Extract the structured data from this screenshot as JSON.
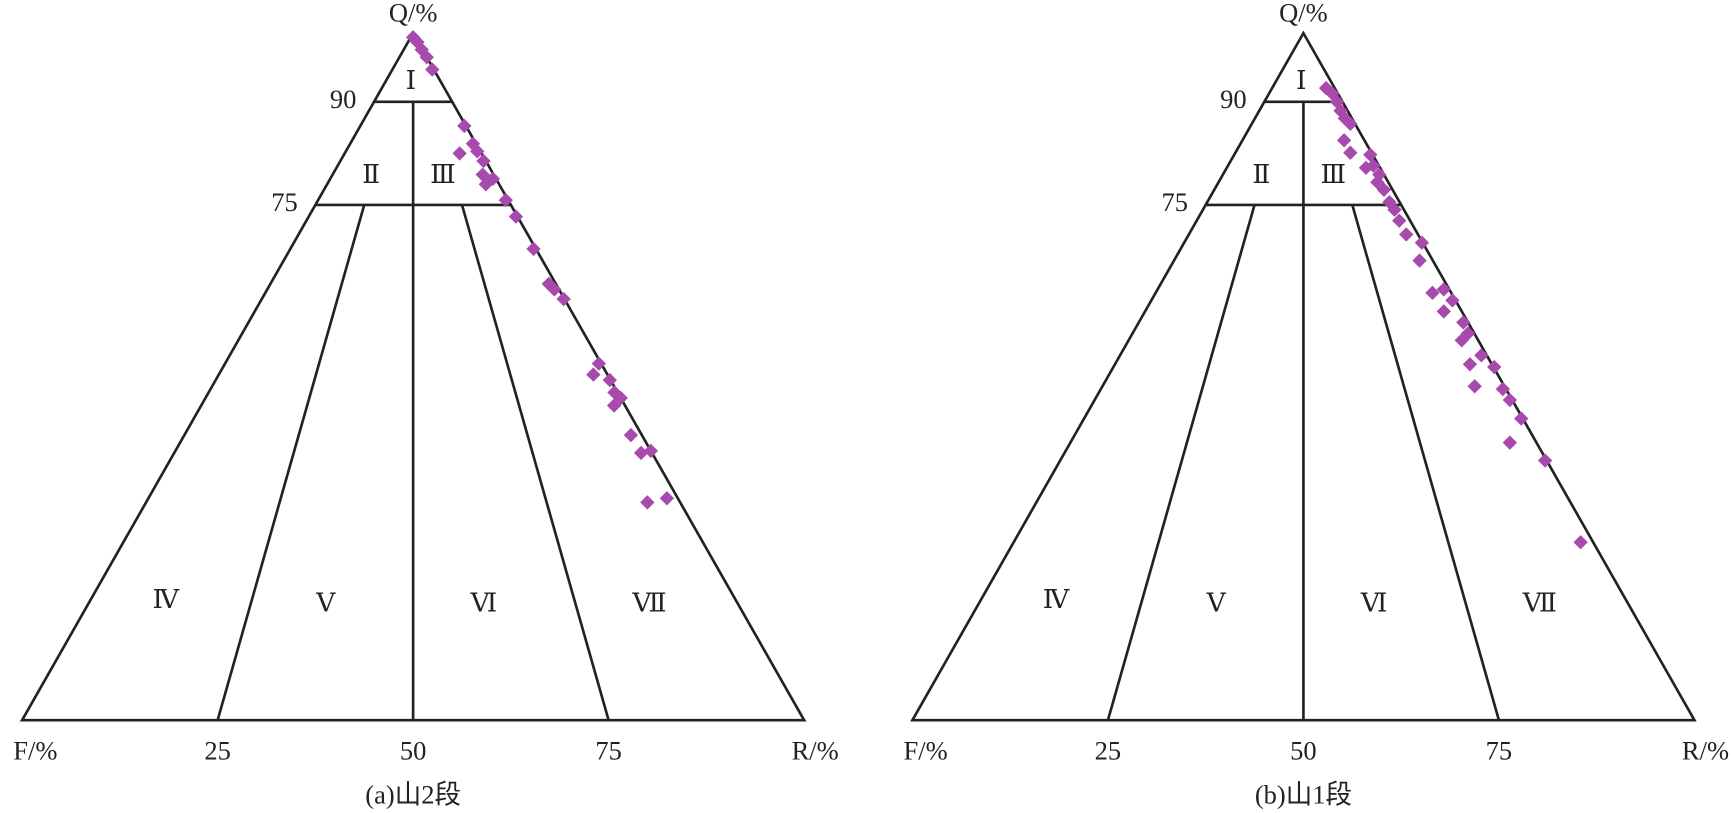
{
  "chart_data": [
    {
      "type": "ternary",
      "caption": "(a)山2段",
      "axis_labels": {
        "top": "Q/%",
        "left": "F/%",
        "right": "R/%"
      },
      "qticks": [
        90,
        75
      ],
      "bticks": [
        25,
        50,
        75
      ],
      "field_labels": [
        "Ⅰ",
        "Ⅱ",
        "Ⅲ",
        "Ⅳ",
        "Ⅴ",
        "Ⅵ",
        "Ⅶ"
      ],
      "color": "#a84aad",
      "points": {
        "q": [
          99.4,
          98.7,
          97.6,
          96.5,
          94.7,
          86.5,
          83.9,
          82.8,
          82.5,
          81.4,
          79.4,
          78.8,
          78.0,
          75.7,
          73.3,
          68.6,
          63.5,
          62.7,
          61.3,
          51.9,
          50.3,
          49.5,
          47.7,
          46.9,
          45.8,
          41.5,
          39.2,
          38.9,
          32.3,
          31.7
        ],
        "r": [
          0.3,
          1.2,
          2.3,
          3.5,
          5.1,
          13.3,
          15.7,
          16.8,
          14.7,
          18.3,
          19.2,
          20.8,
          20.3,
          24.0,
          26.5,
          31.1,
          35.6,
          36.7,
          38.6,
          47.8,
          47.9,
          50.4,
          51.9,
          53.1,
          52.8,
          57.1,
          60.8,
          59.7,
          66.3,
          64.1
        ]
      }
    },
    {
      "type": "ternary",
      "caption": "(b)山1段",
      "axis_labels": {
        "top": "Q/%",
        "left": "F/%",
        "right": "R/%"
      },
      "qticks": [
        90,
        75
      ],
      "bticks": [
        25,
        50,
        75
      ],
      "field_labels": [
        "Ⅰ",
        "Ⅱ",
        "Ⅲ",
        "Ⅳ",
        "Ⅴ",
        "Ⅵ",
        "Ⅶ"
      ],
      "color": "#a84aad",
      "points": {
        "q": [
          92.0,
          91.2,
          90.0,
          88.7,
          87.6,
          86.8,
          84.4,
          82.6,
          82.3,
          80.7,
          80.4,
          79.4,
          78.3,
          77.2,
          75.4,
          74.3,
          72.7,
          70.7,
          69.5,
          66.9,
          62.2,
          62.7,
          61.1,
          59.5,
          57.9,
          56.3,
          55.3,
          53.1,
          51.8,
          51.4,
          48.6,
          48.2,
          46.6,
          43.9,
          40.4,
          37.8,
          25.9
        ],
        "r": [
          6.9,
          8.1,
          9.3,
          10.4,
          11.5,
          12.6,
          13.0,
          14.7,
          17.4,
          18.6,
          17.8,
          20.0,
          20.3,
          21.7,
          23.3,
          24.5,
          25.9,
          27.8,
          30.4,
          31.4,
          35.4,
          36.6,
          38.5,
          38.2,
          41.5,
          42.9,
          42.6,
          46.2,
          45.4,
          48.7,
          47.6,
          51.4,
          53.1,
          55.9,
          56.2,
          62.0,
          72.5
        ]
      }
    }
  ]
}
